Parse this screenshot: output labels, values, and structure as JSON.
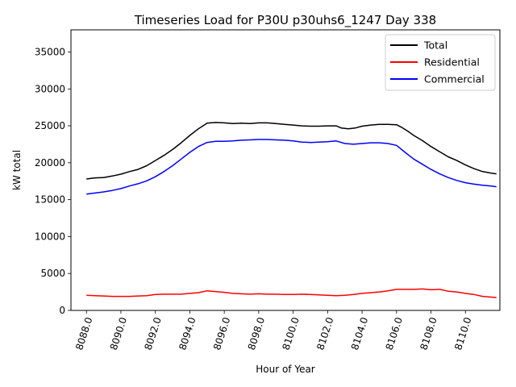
{
  "chart_data": {
    "type": "line",
    "title": "Timeseries Load for P30U p30uhs6_1247  Day 338",
    "xlabel": "Hour of Year",
    "ylabel": "kW total",
    "xlim": [
      8087.1,
      8112.0
    ],
    "ylim": [
      0,
      38000
    ],
    "x_ticks": [
      8088,
      8090,
      8092,
      8094,
      8096,
      8098,
      8100,
      8102,
      8104,
      8106,
      8108,
      8110
    ],
    "x_tick_labels": [
      "8088.0",
      "8090.0",
      "8092.0",
      "8094.0",
      "8096.0",
      "8098.0",
      "8100.0",
      "8102.0",
      "8104.0",
      "8106.0",
      "8108.0",
      "8110.0"
    ],
    "y_ticks": [
      0,
      5000,
      10000,
      15000,
      20000,
      25000,
      30000,
      35000
    ],
    "y_tick_labels": [
      "0",
      "5000",
      "10000",
      "15000",
      "20000",
      "25000",
      "30000",
      "35000"
    ],
    "grid": false,
    "legend_position": "top-right",
    "series": [
      {
        "name": "Total",
        "color": "#000000",
        "points": [
          [
            8088.0,
            17800
          ],
          [
            8088.5,
            17950
          ],
          [
            8089.0,
            18000
          ],
          [
            8089.5,
            18200
          ],
          [
            8090.0,
            18450
          ],
          [
            8090.5,
            18800
          ],
          [
            8091.0,
            19100
          ],
          [
            8091.5,
            19600
          ],
          [
            8092.0,
            20300
          ],
          [
            8092.5,
            21000
          ],
          [
            8093.0,
            21800
          ],
          [
            8093.5,
            22700
          ],
          [
            8094.0,
            23700
          ],
          [
            8094.5,
            24600
          ],
          [
            8095.0,
            25350
          ],
          [
            8095.5,
            25450
          ],
          [
            8096.0,
            25400
          ],
          [
            8096.5,
            25300
          ],
          [
            8097.0,
            25350
          ],
          [
            8097.5,
            25300
          ],
          [
            8098.0,
            25400
          ],
          [
            8098.5,
            25400
          ],
          [
            8099.0,
            25300
          ],
          [
            8099.5,
            25200
          ],
          [
            8100.0,
            25100
          ],
          [
            8100.5,
            25000
          ],
          [
            8101.0,
            24950
          ],
          [
            8101.5,
            24950
          ],
          [
            8102.0,
            25000
          ],
          [
            8102.5,
            25000
          ],
          [
            8102.8,
            24700
          ],
          [
            8103.2,
            24600
          ],
          [
            8103.6,
            24700
          ],
          [
            8104.0,
            24950
          ],
          [
            8104.5,
            25100
          ],
          [
            8105.0,
            25200
          ],
          [
            8105.5,
            25200
          ],
          [
            8106.0,
            25150
          ],
          [
            8106.3,
            24800
          ],
          [
            8106.7,
            24200
          ],
          [
            8107.0,
            23700
          ],
          [
            8107.5,
            23000
          ],
          [
            8108.0,
            22200
          ],
          [
            8108.5,
            21500
          ],
          [
            8109.0,
            20800
          ],
          [
            8109.5,
            20300
          ],
          [
            8110.0,
            19700
          ],
          [
            8110.5,
            19200
          ],
          [
            8111.0,
            18800
          ],
          [
            8111.5,
            18600
          ],
          [
            8111.8,
            18500
          ]
        ]
      },
      {
        "name": "Residential",
        "color": "#ff0000",
        "points": [
          [
            8088.0,
            2050
          ],
          [
            8088.5,
            2000
          ],
          [
            8089.0,
            1950
          ],
          [
            8089.5,
            1900
          ],
          [
            8090.0,
            1900
          ],
          [
            8090.5,
            1900
          ],
          [
            8091.0,
            1950
          ],
          [
            8091.5,
            2000
          ],
          [
            8092.0,
            2150
          ],
          [
            8092.5,
            2200
          ],
          [
            8093.0,
            2200
          ],
          [
            8093.5,
            2200
          ],
          [
            8094.0,
            2300
          ],
          [
            8094.5,
            2400
          ],
          [
            8095.0,
            2650
          ],
          [
            8095.5,
            2550
          ],
          [
            8096.0,
            2450
          ],
          [
            8096.5,
            2300
          ],
          [
            8097.0,
            2250
          ],
          [
            8097.5,
            2200
          ],
          [
            8098.0,
            2250
          ],
          [
            8098.5,
            2200
          ],
          [
            8099.0,
            2200
          ],
          [
            8099.5,
            2150
          ],
          [
            8100.0,
            2150
          ],
          [
            8100.5,
            2200
          ],
          [
            8101.0,
            2150
          ],
          [
            8101.5,
            2100
          ],
          [
            8102.0,
            2050
          ],
          [
            8102.5,
            2000
          ],
          [
            8103.0,
            2050
          ],
          [
            8103.5,
            2150
          ],
          [
            8104.0,
            2300
          ],
          [
            8104.5,
            2400
          ],
          [
            8105.0,
            2500
          ],
          [
            8105.5,
            2650
          ],
          [
            8106.0,
            2850
          ],
          [
            8106.5,
            2850
          ],
          [
            8107.0,
            2850
          ],
          [
            8107.5,
            2900
          ],
          [
            8108.0,
            2800
          ],
          [
            8108.5,
            2850
          ],
          [
            8109.0,
            2600
          ],
          [
            8109.5,
            2500
          ],
          [
            8110.0,
            2300
          ],
          [
            8110.5,
            2150
          ],
          [
            8111.0,
            1900
          ],
          [
            8111.5,
            1800
          ],
          [
            8111.8,
            1750
          ]
        ]
      },
      {
        "name": "Commercial",
        "color": "#0000ff",
        "points": [
          [
            8088.0,
            15750
          ],
          [
            8088.5,
            15900
          ],
          [
            8089.0,
            16050
          ],
          [
            8089.5,
            16250
          ],
          [
            8090.0,
            16500
          ],
          [
            8090.5,
            16850
          ],
          [
            8091.0,
            17150
          ],
          [
            8091.5,
            17550
          ],
          [
            8092.0,
            18100
          ],
          [
            8092.5,
            18800
          ],
          [
            8093.0,
            19600
          ],
          [
            8093.5,
            20500
          ],
          [
            8094.0,
            21400
          ],
          [
            8094.5,
            22200
          ],
          [
            8095.0,
            22750
          ],
          [
            8095.5,
            22900
          ],
          [
            8096.0,
            22900
          ],
          [
            8096.5,
            22950
          ],
          [
            8097.0,
            23050
          ],
          [
            8097.5,
            23100
          ],
          [
            8098.0,
            23150
          ],
          [
            8098.5,
            23150
          ],
          [
            8099.0,
            23100
          ],
          [
            8099.5,
            23050
          ],
          [
            8100.0,
            22950
          ],
          [
            8100.5,
            22800
          ],
          [
            8101.0,
            22750
          ],
          [
            8101.5,
            22800
          ],
          [
            8102.0,
            22850
          ],
          [
            8102.5,
            22950
          ],
          [
            8103.0,
            22600
          ],
          [
            8103.5,
            22500
          ],
          [
            8104.0,
            22600
          ],
          [
            8104.5,
            22700
          ],
          [
            8105.0,
            22700
          ],
          [
            8105.5,
            22600
          ],
          [
            8106.0,
            22350
          ],
          [
            8106.5,
            21400
          ],
          [
            8107.0,
            20500
          ],
          [
            8107.5,
            19800
          ],
          [
            8108.0,
            19100
          ],
          [
            8108.5,
            18500
          ],
          [
            8109.0,
            18000
          ],
          [
            8109.5,
            17600
          ],
          [
            8110.0,
            17300
          ],
          [
            8110.5,
            17100
          ],
          [
            8111.0,
            16950
          ],
          [
            8111.5,
            16850
          ],
          [
            8111.8,
            16750
          ]
        ]
      }
    ]
  }
}
